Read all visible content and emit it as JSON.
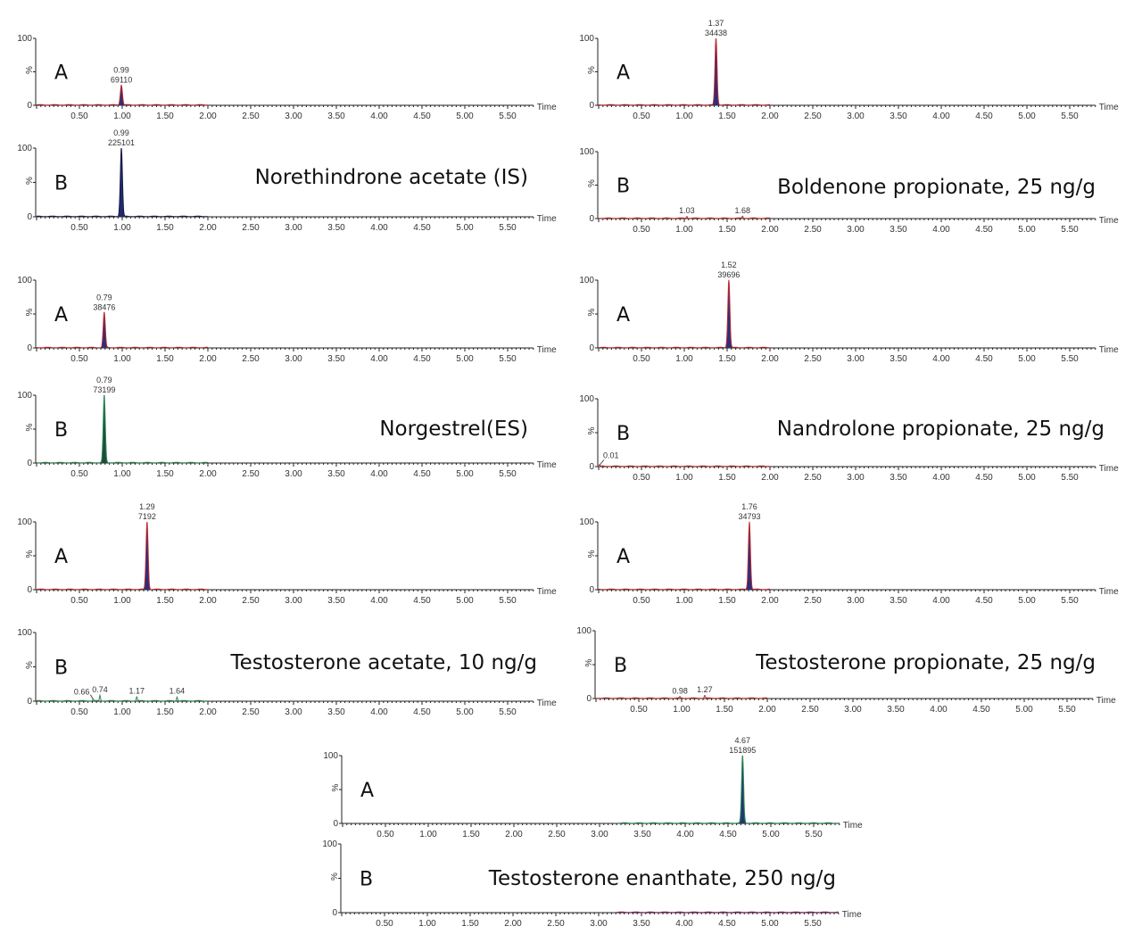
{
  "chart_data": [
    {
      "type": "line",
      "compound": "Norethindrone acetate (IS)",
      "xlabel": "Time",
      "ylabel": "%",
      "xlim": [
        0,
        5.8
      ],
      "ylim": [
        0,
        100
      ],
      "x_ticks": [
        "0.50",
        "1.00",
        "1.50",
        "2.00",
        "2.50",
        "3.00",
        "3.50",
        "4.00",
        "4.50",
        "5.00",
        "5.50"
      ],
      "y_ticks": [
        "0",
        "100"
      ],
      "traces": [
        {
          "label": "A",
          "color": "#c0282d",
          "fill": "#2b2f7a",
          "range": [
            0,
            2.0
          ],
          "peaks": [
            {
              "rt": 0.99,
              "area": "69110",
              "height": 30,
              "labeled": true
            }
          ]
        },
        {
          "label": "B",
          "color": "#1a1a40",
          "fill": "#1f2a6e",
          "range": [
            0,
            2.0
          ],
          "peaks": [
            {
              "rt": 0.99,
              "area": "225101",
              "height": 100,
              "labeled": true
            }
          ]
        }
      ]
    },
    {
      "type": "line",
      "compound": "Norgestrel(ES)",
      "xlabel": "Time",
      "ylabel": "%",
      "xlim": [
        0,
        5.8
      ],
      "ylim": [
        0,
        100
      ],
      "x_ticks": [
        "0.50",
        "1.00",
        "1.50",
        "2.00",
        "2.50",
        "3.00",
        "3.50",
        "4.00",
        "4.50",
        "5.00",
        "5.50"
      ],
      "y_ticks": [
        "0",
        "100"
      ],
      "traces": [
        {
          "label": "A",
          "color": "#c0282d",
          "fill": "#2b2f7a",
          "range": [
            0,
            2.0
          ],
          "peaks": [
            {
              "rt": 0.79,
              "area": "38476",
              "height": 52,
              "labeled": true
            }
          ]
        },
        {
          "label": "B",
          "color": "#2e8b57",
          "fill": "#1d4d3a",
          "range": [
            0,
            2.0
          ],
          "peaks": [
            {
              "rt": 0.79,
              "area": "73199",
              "height": 100,
              "labeled": true
            }
          ]
        }
      ]
    },
    {
      "type": "line",
      "compound": "Testosterone acetate, 10 ng/g",
      "xlabel": "Time",
      "ylabel": "%",
      "xlim": [
        0,
        5.8
      ],
      "ylim": [
        0,
        100
      ],
      "x_ticks": [
        "0.50",
        "1.00",
        "1.50",
        "2.00",
        "2.50",
        "3.00",
        "3.50",
        "4.00",
        "4.50",
        "5.00",
        "5.50"
      ],
      "y_ticks": [
        "0",
        "100"
      ],
      "traces": [
        {
          "label": "A",
          "color": "#c0282d",
          "fill": "#2b2f7a",
          "range": [
            0,
            2.0
          ],
          "peaks": [
            {
              "rt": 1.29,
              "area": "7192",
              "height": 100,
              "labeled": true
            }
          ]
        },
        {
          "label": "B",
          "color": "#2e8b57",
          "fill": "#2e8b57",
          "range": [
            0,
            2.0
          ],
          "peaks": [
            {
              "rt": 0.66,
              "height": 3,
              "labeled": true
            },
            {
              "rt": 0.74,
              "height": 8,
              "labeled": true
            },
            {
              "rt": 1.17,
              "height": 6,
              "labeled": true
            },
            {
              "rt": 1.64,
              "height": 6,
              "labeled": true
            }
          ]
        }
      ]
    },
    {
      "type": "line",
      "compound": "Boldenone propionate, 25 ng/g",
      "xlabel": "Time",
      "ylabel": "%",
      "xlim": [
        0,
        5.8
      ],
      "ylim": [
        0,
        100
      ],
      "x_ticks": [
        "0.50",
        "1.00",
        "1.50",
        "2.00",
        "2.50",
        "3.00",
        "3.50",
        "4.00",
        "4.50",
        "5.00",
        "5.50"
      ],
      "y_ticks": [
        "0",
        "100"
      ],
      "traces": [
        {
          "label": "A",
          "color": "#c0282d",
          "fill": "#2b2f7a",
          "range": [
            0,
            2.0
          ],
          "peaks": [
            {
              "rt": 1.37,
              "area": "34438",
              "height": 100,
              "labeled": true
            }
          ]
        },
        {
          "label": "B",
          "color": "#c0282d",
          "fill": "#c0282d",
          "range": [
            0,
            2.0
          ],
          "peaks": [
            {
              "rt": 1.03,
              "height": 3,
              "labeled": true
            },
            {
              "rt": 1.68,
              "height": 3,
              "labeled": true
            }
          ]
        }
      ]
    },
    {
      "type": "line",
      "compound": "Nandrolone propionate, 25 ng/g",
      "xlabel": "Time",
      "ylabel": "%",
      "xlim": [
        0,
        5.8
      ],
      "ylim": [
        0,
        100
      ],
      "x_ticks": [
        "0.50",
        "1.00",
        "1.50",
        "2.00",
        "2.50",
        "3.00",
        "3.50",
        "4.00",
        "4.50",
        "5.00",
        "5.50"
      ],
      "y_ticks": [
        "0",
        "100"
      ],
      "traces": [
        {
          "label": "A",
          "color": "#c0282d",
          "fill": "#2b2f7a",
          "range": [
            0,
            2.0
          ],
          "peaks": [
            {
              "rt": 1.52,
              "area": "39696",
              "height": 100,
              "labeled": true
            }
          ]
        },
        {
          "label": "B",
          "color": "#c0282d",
          "fill": "#c0282d",
          "range": [
            0,
            2.0
          ],
          "peaks": [
            {
              "rt": 0.01,
              "height": 2,
              "labeled": true
            }
          ]
        }
      ]
    },
    {
      "type": "line",
      "compound": "Testosterone propionate, 25 ng/g",
      "xlabel": "Time",
      "ylabel": "%",
      "xlim": [
        0,
        5.8
      ],
      "ylim": [
        0,
        100
      ],
      "x_ticks": [
        "0.50",
        "1.00",
        "1.50",
        "2.00",
        "2.50",
        "3.00",
        "3.50",
        "4.00",
        "4.50",
        "5.00",
        "5.50"
      ],
      "y_ticks": [
        "0",
        "100"
      ],
      "traces": [
        {
          "label": "A",
          "color": "#c0282d",
          "fill": "#2b2f7a",
          "range": [
            0,
            2.0
          ],
          "peaks": [
            {
              "rt": 1.76,
              "area": "34793",
              "height": 100,
              "labeled": true
            }
          ]
        },
        {
          "label": "B",
          "color": "#c0282d",
          "fill": "#c0282d",
          "range": [
            0,
            2.0
          ],
          "peaks": [
            {
              "rt": 0.98,
              "height": 2,
              "labeled": true
            },
            {
              "rt": 1.27,
              "height": 4,
              "labeled": true
            }
          ]
        }
      ]
    },
    {
      "type": "line",
      "compound": "Testosterone enanthate, 250 ng/g",
      "xlabel": "Time",
      "ylabel": "%",
      "xlim": [
        0,
        5.8
      ],
      "ylim": [
        0,
        100
      ],
      "x_ticks": [
        "0.50",
        "1.00",
        "1.50",
        "2.00",
        "2.50",
        "3.00",
        "3.50",
        "4.00",
        "4.50",
        "5.00",
        "5.50"
      ],
      "y_ticks": [
        "0",
        "100"
      ],
      "traces": [
        {
          "label": "A",
          "color": "#2e8b57",
          "fill": "#1f3a6e",
          "range": [
            3.2,
            5.8
          ],
          "peaks": [
            {
              "rt": 4.67,
              "area": "151895",
              "height": 100,
              "labeled": true
            }
          ]
        },
        {
          "label": "B",
          "color": "#8b1a6b",
          "fill": "#8b1a6b",
          "range": [
            3.2,
            5.8
          ],
          "peaks": []
        }
      ]
    }
  ]
}
